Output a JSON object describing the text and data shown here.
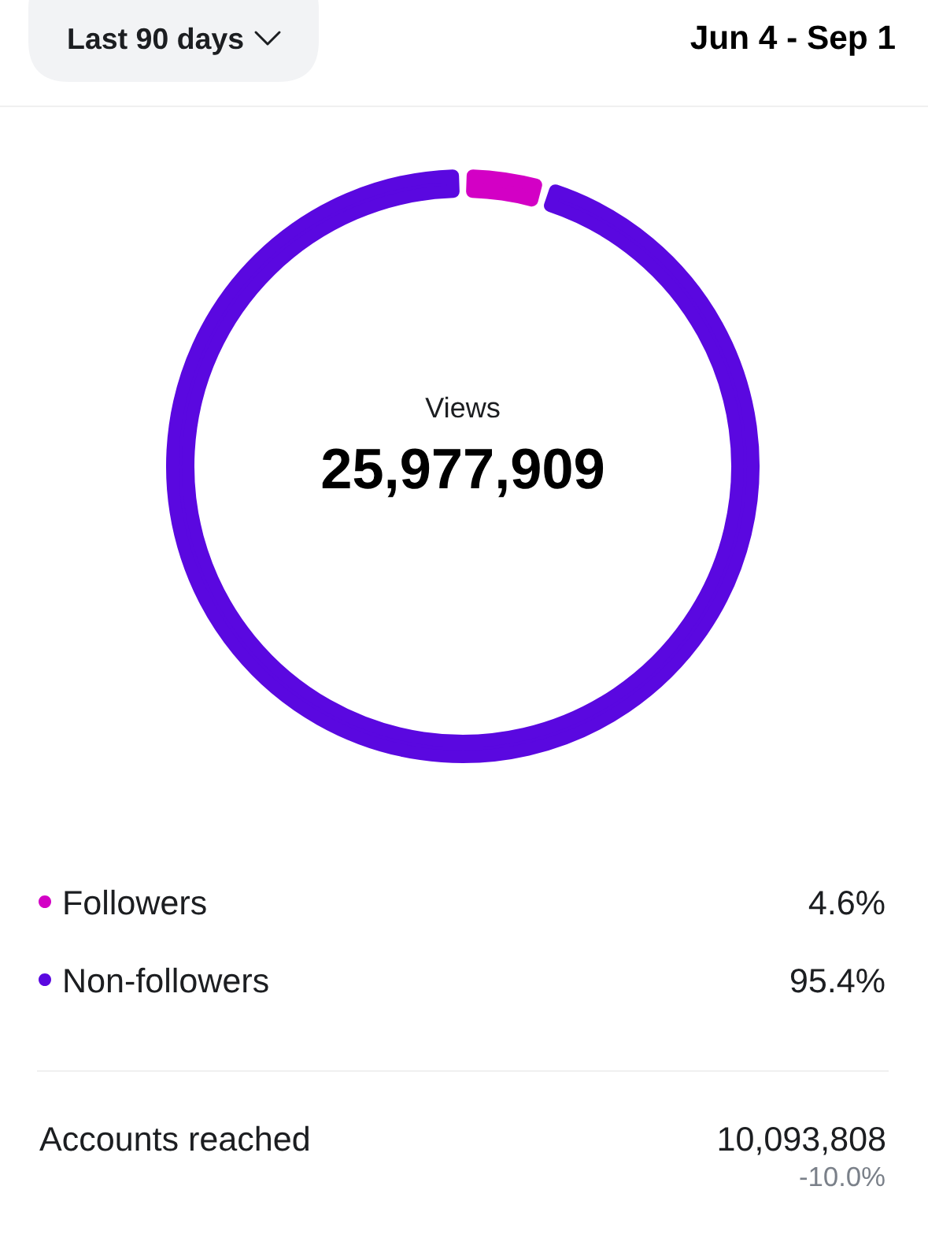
{
  "chart_data": {
    "type": "donut",
    "title": "Views",
    "subtitle": "25,977,909",
    "categories": [
      "Followers",
      "Non-followers"
    ],
    "values": [
      4.6,
      95.4
    ],
    "colors": [
      "#d300c5",
      "#5a08e0"
    ],
    "value_labels": [
      "4.6%",
      "95.4%"
    ],
    "legend": "bottom",
    "annotations": [
      "Last 90 days",
      "Jun 4 - Sep 1",
      "Accounts reached",
      "10,093,808",
      "-10.0%"
    ]
  }
}
